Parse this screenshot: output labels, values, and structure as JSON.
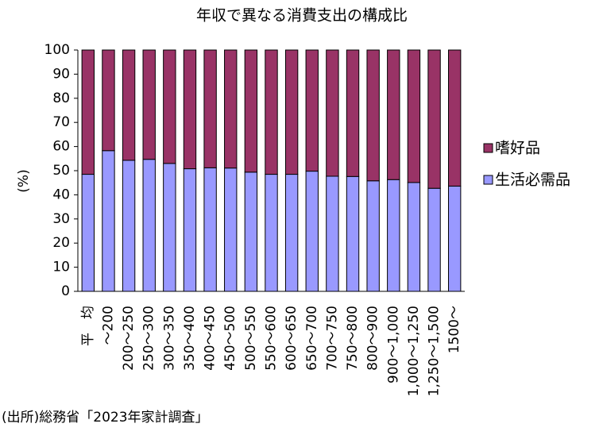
{
  "chart_data": {
    "type": "stacked_bar",
    "title": "年収で異なる消費支出の構成比",
    "y_label": "(%)",
    "source": "(出所)総務省「2023年家計調査」",
    "categories": [
      "平　均",
      "～200",
      "200～250",
      "250～300",
      "300～350",
      "350～400",
      "400～450",
      "450～500",
      "500～550",
      "550～600",
      "600～650",
      "650～700",
      "700～750",
      "750～800",
      "800～900",
      "900～1,000",
      "1,000～1,250",
      "1,250～1,500",
      "1500～"
    ],
    "series": [
      {
        "name": "生活必需品",
        "color": "#9999ff",
        "values": [
          48.5,
          58.3,
          54.3,
          54.7,
          53,
          50.8,
          51.2,
          51.1,
          49.4,
          48.5,
          48.5,
          49.8,
          47.7,
          47.6,
          45.8,
          46.3,
          45.1,
          42.7,
          43.6
        ]
      },
      {
        "name": "嗜好品",
        "color": "#993366",
        "values": [
          51.5,
          41.7,
          45.7,
          45.3,
          47,
          49.2,
          48.8,
          48.9,
          50.6,
          51.5,
          51.5,
          50.2,
          52.3,
          52.4,
          54.2,
          53.7,
          54.9,
          57.3,
          56.4
        ]
      }
    ],
    "ylim": [
      0,
      100
    ],
    "yticks": [
      0,
      10,
      20,
      30,
      40,
      50,
      60,
      70,
      80,
      90,
      100
    ]
  }
}
